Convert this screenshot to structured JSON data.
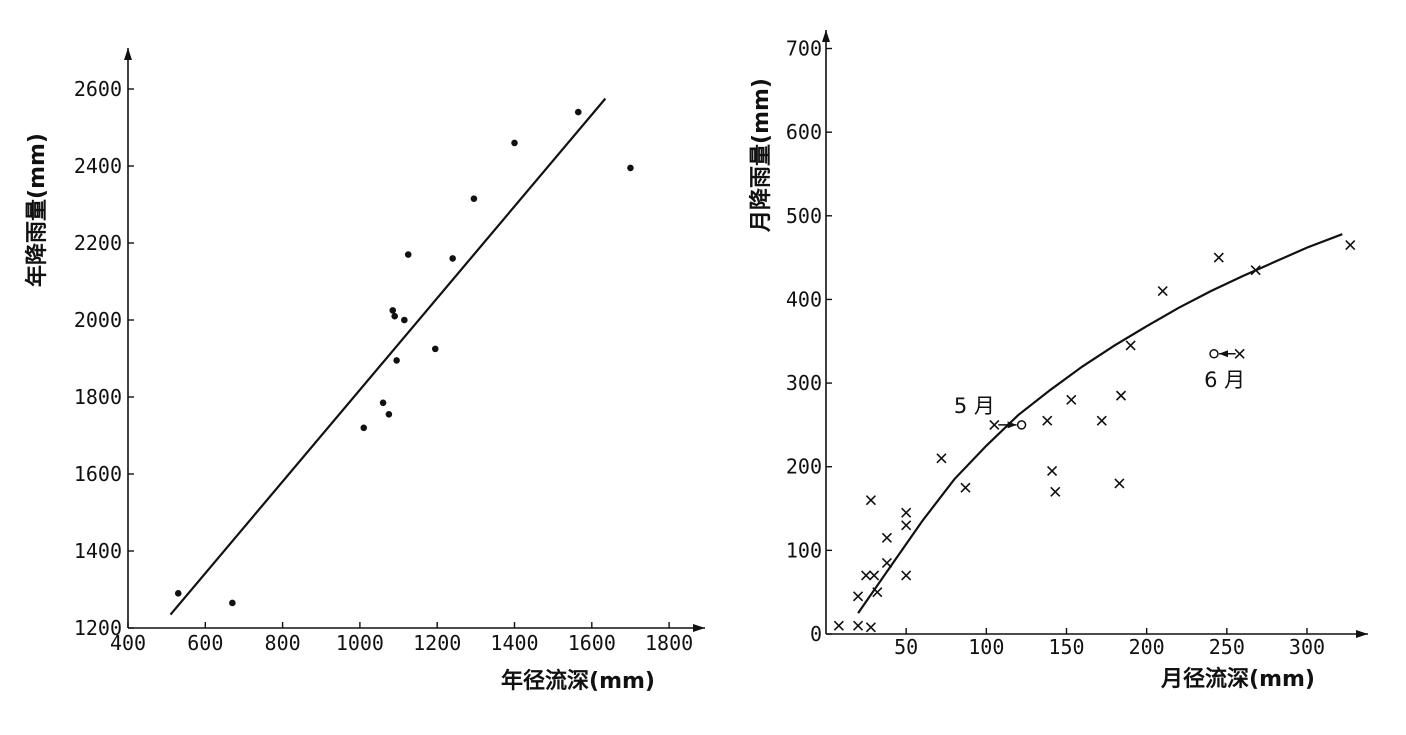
{
  "chart_data": [
    {
      "type": "scatter",
      "title": "",
      "xlabel": "年径流深(mm)",
      "ylabel": "年降雨量(mm)",
      "xlim": [
        400,
        1800
      ],
      "ylim": [
        1200,
        2600
      ],
      "x_ticks": [
        400,
        600,
        800,
        1000,
        1200,
        1400,
        1600,
        1800
      ],
      "y_ticks": [
        1200,
        1400,
        1600,
        1800,
        2000,
        2200,
        2400,
        2600
      ],
      "marker": "dot",
      "series": [
        {
          "points": [
            {
              "x": 530,
              "y": 1290
            },
            {
              "x": 670,
              "y": 1265
            },
            {
              "x": 1010,
              "y": 1720
            },
            {
              "x": 1060,
              "y": 1785
            },
            {
              "x": 1075,
              "y": 1755
            },
            {
              "x": 1085,
              "y": 2025
            },
            {
              "x": 1090,
              "y": 2010
            },
            {
              "x": 1095,
              "y": 1895
            },
            {
              "x": 1115,
              "y": 2000
            },
            {
              "x": 1125,
              "y": 2170
            },
            {
              "x": 1195,
              "y": 1925
            },
            {
              "x": 1240,
              "y": 2160
            },
            {
              "x": 1295,
              "y": 2315
            },
            {
              "x": 1400,
              "y": 2460
            },
            {
              "x": 1565,
              "y": 2540
            },
            {
              "x": 1700,
              "y": 2395
            }
          ]
        }
      ],
      "fit_line": {
        "type": "linear",
        "from": {
          "x": 510,
          "y": 1235
        },
        "to": {
          "x": 1635,
          "y": 2575
        }
      }
    },
    {
      "type": "scatter",
      "title": "",
      "xlabel": "月径流深(mm)",
      "ylabel": "月降雨量(mm)",
      "xlim": [
        0,
        340
      ],
      "ylim": [
        0,
        700
      ],
      "x_ticks": [
        50,
        100,
        150,
        200,
        250,
        300
      ],
      "y_ticks": [
        0,
        100,
        200,
        300,
        400,
        500,
        600,
        700
      ],
      "marker": "cross",
      "series": [
        {
          "points": [
            {
              "x": 8,
              "y": 10
            },
            {
              "x": 20,
              "y": 10
            },
            {
              "x": 28,
              "y": 8
            },
            {
              "x": 20,
              "y": 45
            },
            {
              "x": 25,
              "y": 70
            },
            {
              "x": 30,
              "y": 70
            },
            {
              "x": 32,
              "y": 50
            },
            {
              "x": 28,
              "y": 160
            },
            {
              "x": 38,
              "y": 85
            },
            {
              "x": 38,
              "y": 115
            },
            {
              "x": 50,
              "y": 70
            },
            {
              "x": 50,
              "y": 130
            },
            {
              "x": 50,
              "y": 145
            },
            {
              "x": 72,
              "y": 210
            },
            {
              "x": 87,
              "y": 175
            },
            {
              "x": 105,
              "y": 250
            },
            {
              "x": 138,
              "y": 255
            },
            {
              "x": 141,
              "y": 195
            },
            {
              "x": 143,
              "y": 170
            },
            {
              "x": 153,
              "y": 280
            },
            {
              "x": 172,
              "y": 255
            },
            {
              "x": 183,
              "y": 180
            },
            {
              "x": 184,
              "y": 285
            },
            {
              "x": 190,
              "y": 345
            },
            {
              "x": 210,
              "y": 410
            },
            {
              "x": 245,
              "y": 450
            },
            {
              "x": 268,
              "y": 435
            },
            {
              "x": 327,
              "y": 465
            },
            {
              "x": 258,
              "y": 335
            }
          ]
        }
      ],
      "shifted_points": [
        {
          "label": "5 月",
          "from": {
            "x": 105,
            "y": 250
          },
          "to": {
            "x": 122,
            "y": 250
          }
        },
        {
          "label": "6 月",
          "from": {
            "x": 258,
            "y": 335
          },
          "to": {
            "x": 242,
            "y": 335
          }
        }
      ],
      "fit_curve": [
        {
          "x": 20,
          "y": 25
        },
        {
          "x": 40,
          "y": 80
        },
        {
          "x": 60,
          "y": 135
        },
        {
          "x": 80,
          "y": 185
        },
        {
          "x": 100,
          "y": 225
        },
        {
          "x": 120,
          "y": 262
        },
        {
          "x": 140,
          "y": 292
        },
        {
          "x": 160,
          "y": 320
        },
        {
          "x": 180,
          "y": 345
        },
        {
          "x": 200,
          "y": 368
        },
        {
          "x": 220,
          "y": 390
        },
        {
          "x": 240,
          "y": 410
        },
        {
          "x": 260,
          "y": 428
        },
        {
          "x": 280,
          "y": 445
        },
        {
          "x": 300,
          "y": 462
        },
        {
          "x": 322,
          "y": 478
        }
      ]
    }
  ]
}
